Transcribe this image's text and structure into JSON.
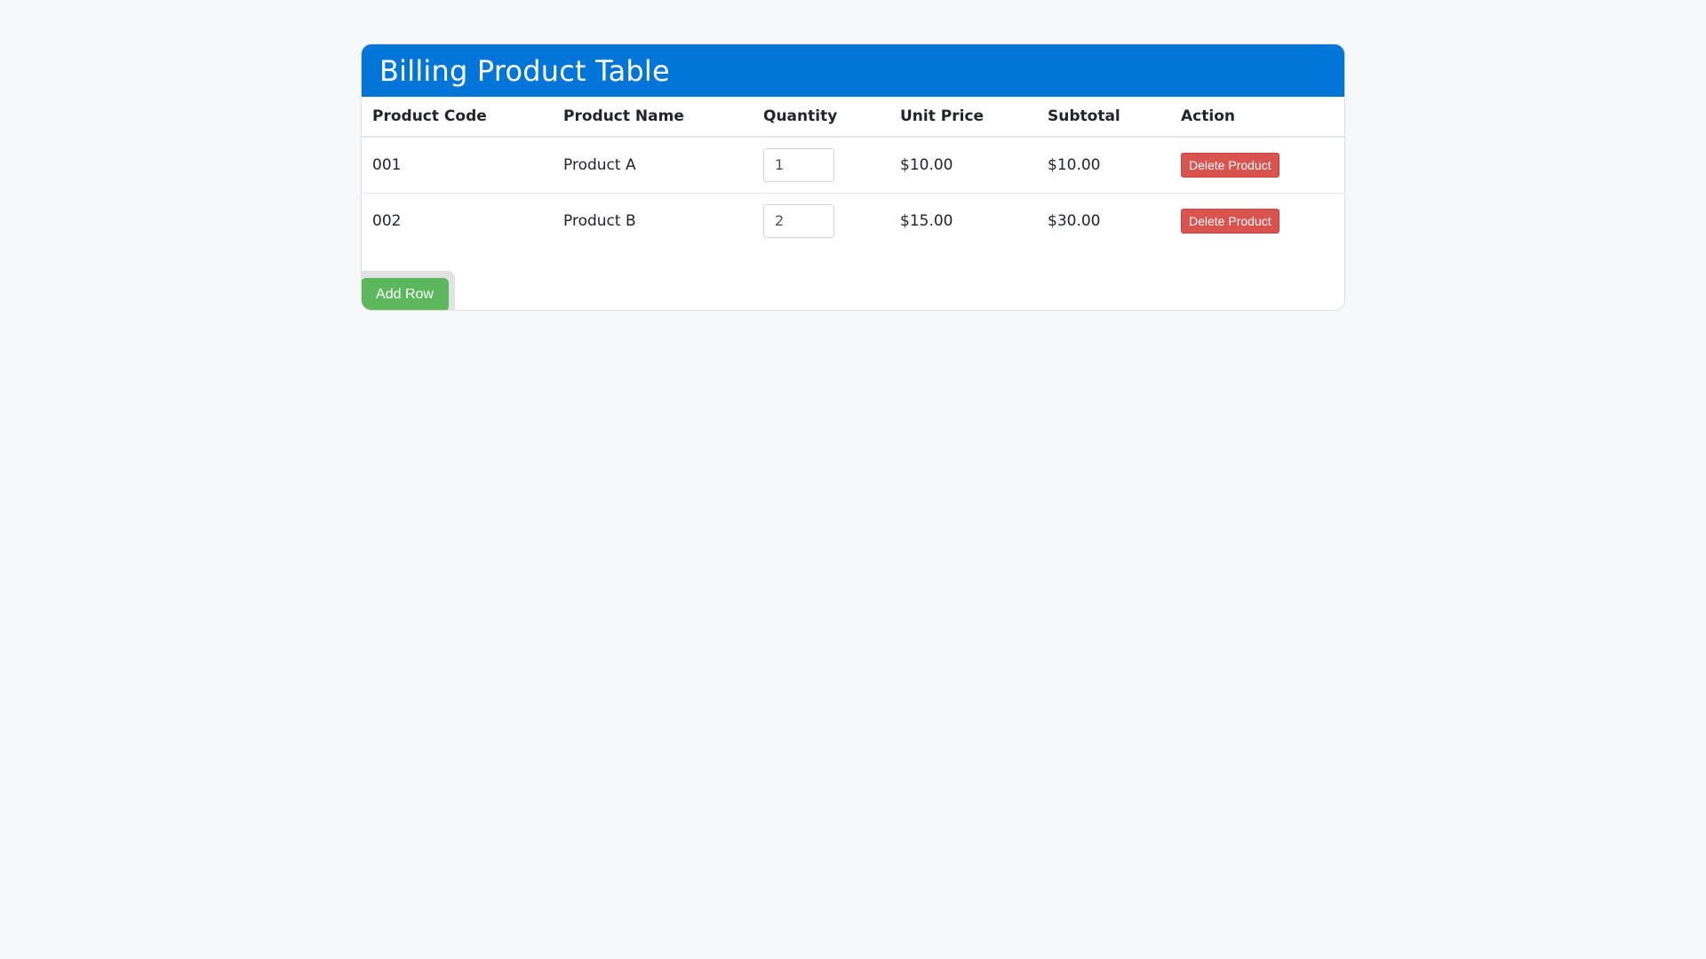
{
  "header": {
    "title": "Billing Product Table",
    "color": "#0275d8"
  },
  "table": {
    "columns": [
      "Product Code",
      "Product Name",
      "Quantity",
      "Unit Price",
      "Subtotal",
      "Action"
    ],
    "rows": [
      {
        "code": "001",
        "name": "Product A",
        "quantity": "1",
        "unit_price": "$10.00",
        "subtotal": "$10.00",
        "action_label": "Delete Product"
      },
      {
        "code": "002",
        "name": "Product B",
        "quantity": "2",
        "unit_price": "$15.00",
        "subtotal": "$30.00",
        "action_label": "Delete Product"
      }
    ]
  },
  "footer": {
    "add_row_label": "Add Row"
  },
  "colors": {
    "delete_button": "#d9534f",
    "add_button": "#5cb85c",
    "background": "#f7f8fa"
  }
}
